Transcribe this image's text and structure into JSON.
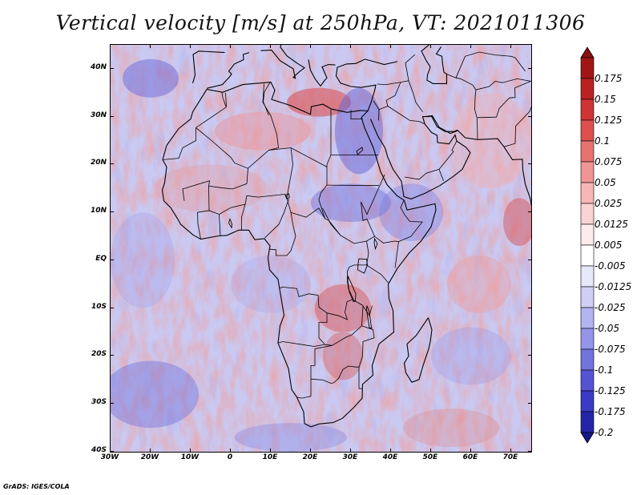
{
  "title": "Vertical velocity [m/s] at 250hPa, VT: 2021011306",
  "footer": "GrADS: IGES/COLA",
  "map": {
    "variable": "Vertical velocity",
    "units": "m/s",
    "level": "250hPa",
    "valid_time": "2021011306",
    "lon_range": [
      -30,
      75
    ],
    "lat_range": [
      -40,
      45
    ],
    "lat_ticks": [
      {
        "value": 40,
        "label": "40N"
      },
      {
        "value": 30,
        "label": "30N"
      },
      {
        "value": 20,
        "label": "20N"
      },
      {
        "value": 10,
        "label": "10N"
      },
      {
        "value": 0,
        "label": "EQ"
      },
      {
        "value": -10,
        "label": "10S"
      },
      {
        "value": -20,
        "label": "20S"
      },
      {
        "value": -30,
        "label": "30S"
      },
      {
        "value": -40,
        "label": "40S"
      }
    ],
    "lon_ticks": [
      {
        "value": -30,
        "label": "30W"
      },
      {
        "value": -20,
        "label": "20W"
      },
      {
        "value": -10,
        "label": "10W"
      },
      {
        "value": 0,
        "label": "0"
      },
      {
        "value": 10,
        "label": "10E"
      },
      {
        "value": 20,
        "label": "20E"
      },
      {
        "value": 30,
        "label": "30E"
      },
      {
        "value": 40,
        "label": "40E"
      },
      {
        "value": 50,
        "label": "50E"
      },
      {
        "value": 60,
        "label": "60E"
      },
      {
        "value": 70,
        "label": "70E"
      }
    ]
  },
  "colorbar": {
    "levels": [
      {
        "label": "0.175",
        "color": "#a01616"
      },
      {
        "label": "0.15",
        "color": "#b92222"
      },
      {
        "label": "0.125",
        "color": "#cf3434"
      },
      {
        "label": "0.1",
        "color": "#dd5050"
      },
      {
        "label": "0.075",
        "color": "#e87272"
      },
      {
        "label": "0.05",
        "color": "#f09595"
      },
      {
        "label": "0.025",
        "color": "#f6b6b6"
      },
      {
        "label": "0.0125",
        "color": "#fad3d3"
      },
      {
        "label": "0.005",
        "color": "#fdecec"
      },
      {
        "label": "-0.005",
        "color": "#ffffff"
      },
      {
        "label": "-0.0125",
        "color": "#e8e8fb"
      },
      {
        "label": "-0.025",
        "color": "#cfcff6"
      },
      {
        "label": "-0.05",
        "color": "#b3b3f0"
      },
      {
        "label": "-0.075",
        "color": "#9494e8"
      },
      {
        "label": "-0.1",
        "color": "#7373de"
      },
      {
        "label": "-0.125",
        "color": "#5454d2"
      },
      {
        "label": "-0.175",
        "color": "#3a3ac2"
      },
      {
        "label": "-0.2",
        "color": "#2424a8"
      }
    ],
    "top_color": "#8c1010",
    "bottom_color": "#16168c"
  }
}
